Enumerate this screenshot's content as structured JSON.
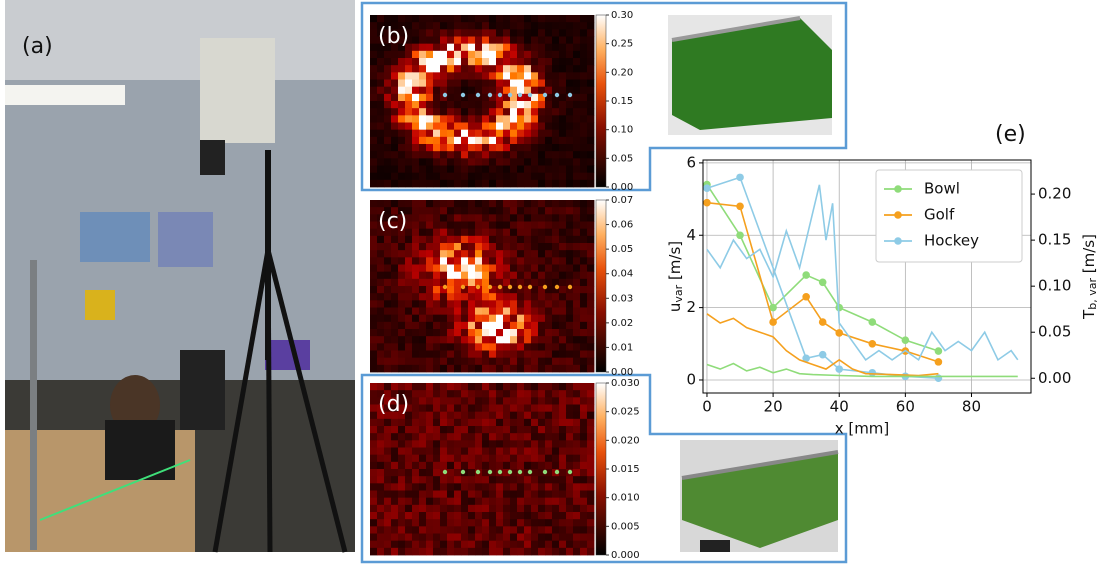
{
  "panels": [
    {
      "label": "(a)"
    },
    {
      "label": "(b)"
    },
    {
      "label": "(c)"
    },
    {
      "label": "(d)"
    },
    {
      "label": "(e)"
    }
  ],
  "colorbars": [
    {
      "ticks": [
        {
          "value": 0,
          "label": "0.00"
        },
        {
          "value": 0.05,
          "label": "0.05"
        },
        {
          "value": 0.1,
          "label": "0.10"
        },
        {
          "value": 0.15,
          "label": "0.15"
        },
        {
          "value": 0.2,
          "label": "0.20"
        },
        {
          "value": 0.25,
          "label": "0.25"
        },
        {
          "value": 0.3,
          "label": "0.30"
        }
      ]
    },
    {
      "ticks": [
        {
          "value": 0,
          "label": "0.00"
        },
        {
          "value": 0.01,
          "label": "0.01"
        },
        {
          "value": 0.02,
          "label": "0.02"
        },
        {
          "value": 0.03,
          "label": "0.03"
        },
        {
          "value": 0.04,
          "label": "0.04"
        },
        {
          "value": 0.05,
          "label": "0.05"
        },
        {
          "value": 0.06,
          "label": "0.06"
        },
        {
          "value": 0.07,
          "label": "0.07"
        }
      ]
    },
    {
      "ticks": [
        {
          "value": 0,
          "label": "0.000"
        },
        {
          "value": 0.005,
          "label": "0.005"
        },
        {
          "value": 0.01,
          "label": "0.010"
        },
        {
          "value": 0.015,
          "label": "0.015"
        },
        {
          "value": 0.02,
          "label": "0.020"
        },
        {
          "value": 0.025,
          "label": "0.025"
        },
        {
          "value": 0.03,
          "label": "0.030"
        }
      ]
    }
  ],
  "chart_data": {
    "type": "line",
    "xlabel": "x [mm]",
    "ylabel": {
      "main": "u",
      "sub": "var",
      "unit": " [m/s]"
    },
    "y2label": {
      "main": "T",
      "sub": "b, var",
      "unit": " [m/s]"
    },
    "xlim": [
      -1.2,
      98
    ],
    "ylim": [
      -0.36,
      6.08
    ],
    "y2lim": [
      -0.016,
      0.237
    ],
    "xticks": [
      0,
      20,
      40,
      60,
      80
    ],
    "yticks": [
      0,
      2,
      4,
      6
    ],
    "y2ticks": [
      {
        "value": 0,
        "label": "0.00"
      },
      {
        "value": 0.05,
        "label": "0.05"
      },
      {
        "value": 0.1,
        "label": "0.10"
      },
      {
        "value": 0.15,
        "label": "0.15"
      },
      {
        "value": 0.2,
        "label": "0.20"
      }
    ],
    "grid": true,
    "legend": "upper right",
    "series": [
      {
        "name": "Bowl",
        "color": "#8fdc7a",
        "markers": true,
        "axis": "y",
        "x": [
          0,
          10,
          20,
          30,
          35,
          40,
          50,
          60,
          70
        ],
        "values": [
          5.4,
          4.0,
          2.0,
          2.9,
          2.7,
          2.0,
          1.6,
          1.1,
          0.8
        ]
      },
      {
        "name": "Golf",
        "color": "#f5a01e",
        "markers": true,
        "axis": "y",
        "x": [
          0,
          10,
          20,
          30,
          35,
          40,
          50,
          60,
          70
        ],
        "values": [
          4.9,
          4.8,
          1.6,
          2.3,
          1.6,
          1.3,
          1.0,
          0.8,
          0.5
        ]
      },
      {
        "name": "Hockey",
        "color": "#8ecbe6",
        "markers": true,
        "axis": "y",
        "x": [
          0,
          10,
          30,
          35,
          40,
          50,
          60,
          70
        ],
        "values": [
          5.3,
          5.6,
          0.6,
          0.7,
          0.3,
          0.2,
          0.1,
          0.05
        ]
      },
      {
        "color": "#8ecbe6",
        "markers": false,
        "axis": "y2",
        "x": [
          0,
          4,
          8,
          12,
          16,
          20,
          24,
          28,
          32,
          34,
          36,
          38,
          40,
          44,
          48,
          52,
          56,
          60,
          64,
          68,
          72,
          76,
          80,
          84,
          88,
          92,
          94
        ],
        "values": [
          0.14,
          0.12,
          0.15,
          0.13,
          0.14,
          0.11,
          0.16,
          0.12,
          0.18,
          0.21,
          0.15,
          0.19,
          0.06,
          0.04,
          0.02,
          0.03,
          0.02,
          0.03,
          0.02,
          0.05,
          0.03,
          0.04,
          0.03,
          0.05,
          0.02,
          0.03,
          0.02
        ]
      },
      {
        "color": "#f5a01e",
        "markers": false,
        "axis": "y2",
        "x": [
          0,
          4,
          8,
          12,
          16,
          20,
          24,
          28,
          32,
          36,
          40,
          44,
          48,
          56,
          64,
          70
        ],
        "values": [
          0.07,
          0.06,
          0.065,
          0.055,
          0.05,
          0.045,
          0.03,
          0.02,
          0.015,
          0.01,
          0.02,
          0.01,
          0.005,
          0.004,
          0.003,
          0.005
        ]
      },
      {
        "color": "#8fdc7a",
        "markers": false,
        "axis": "y2",
        "x": [
          0,
          4,
          8,
          12,
          16,
          20,
          24,
          28,
          32,
          40,
          50,
          60,
          70,
          80,
          94
        ],
        "values": [
          0.015,
          0.01,
          0.016,
          0.008,
          0.012,
          0.006,
          0.01,
          0.005,
          0.004,
          0.003,
          0.002,
          0.002,
          0.002,
          0.002,
          0.002
        ]
      }
    ]
  }
}
